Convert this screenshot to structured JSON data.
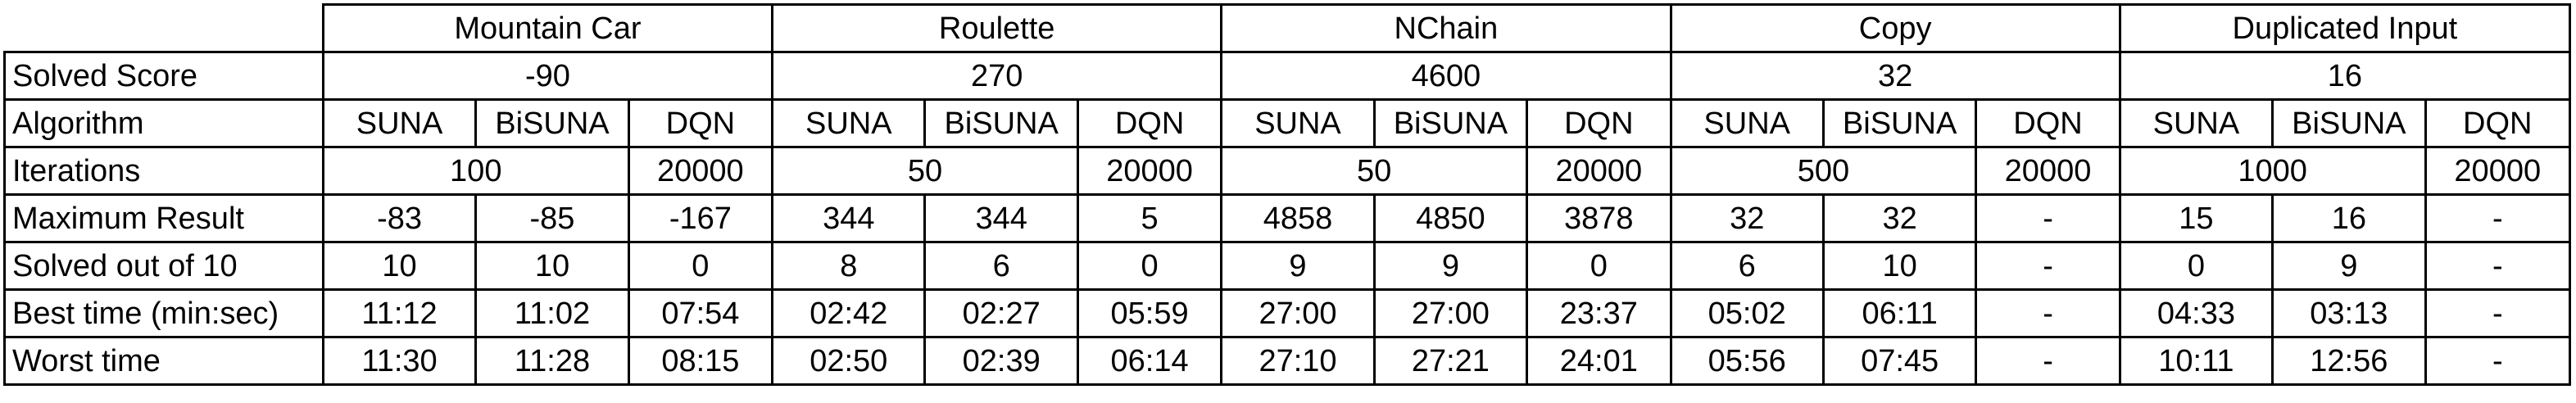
{
  "environments": [
    "Mountain Car",
    "Roulette",
    "NChain",
    "Copy",
    "Duplicated Input"
  ],
  "rows": {
    "solved_score": {
      "label": "Solved Score",
      "values": [
        "-90",
        "270",
        "4600",
        "32",
        "16"
      ]
    },
    "algorithm": {
      "label": "Algorithm",
      "values": [
        "SUNA",
        "BiSUNA",
        "DQN",
        "SUNA",
        "BiSUNA",
        "DQN",
        "SUNA",
        "BiSUNA",
        "DQN",
        "SUNA",
        "BiSUNA",
        "DQN",
        "SUNA",
        "BiSUNA",
        "DQN"
      ]
    },
    "iterations": {
      "label": "Iterations",
      "values": [
        "100",
        "20000",
        "50",
        "20000",
        "50",
        "20000",
        "500",
        "20000",
        "1000",
        "20000"
      ]
    },
    "maximum_result": {
      "label": "Maximum Result",
      "values": [
        "-83",
        "-85",
        "-167",
        "344",
        "344",
        "5",
        "4858",
        "4850",
        "3878",
        "32",
        "32",
        "-",
        "15",
        "16",
        "-"
      ]
    },
    "solved_out_of_10": {
      "label": "Solved out of 10",
      "values": [
        "10",
        "10",
        "0",
        "8",
        "6",
        "0",
        "9",
        "9",
        "0",
        "6",
        "10",
        "-",
        "0",
        "9",
        "-"
      ]
    },
    "best_time": {
      "label": "Best time (min:sec)",
      "values": [
        "11:12",
        "11:02",
        "07:54",
        "02:42",
        "02:27",
        "05:59",
        "27:00",
        "27:00",
        "23:37",
        "05:02",
        "06:11",
        "-",
        "04:33",
        "03:13",
        "-"
      ]
    },
    "worst_time": {
      "label": "Worst time",
      "values": [
        "11:30",
        "11:28",
        "08:15",
        "02:50",
        "02:39",
        "06:14",
        "27:10",
        "27:21",
        "24:01",
        "05:56",
        "07:45",
        "-",
        "10:11",
        "12:56",
        "-"
      ]
    }
  }
}
